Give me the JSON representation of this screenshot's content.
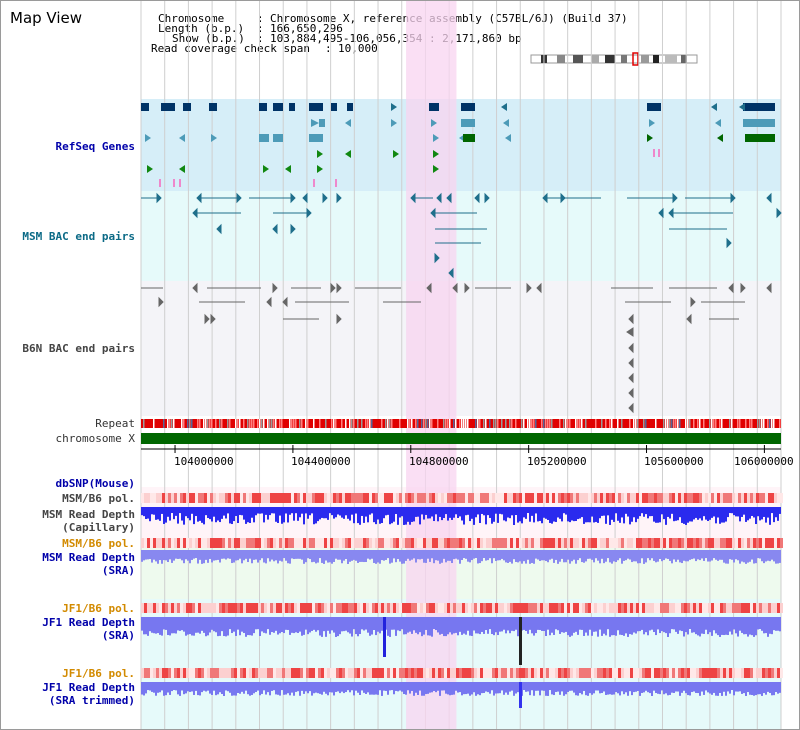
{
  "view": {
    "title": "Map View",
    "chromosome_key": "Chromosome",
    "chromosome_value": "Chromosome X, reference assembly (C57BL/6J) (Build 37)",
    "length_key": "Length (b.p.)",
    "length_value": "166,650,296",
    "show_key": "Show (b.p.)",
    "show_value": "103,884,495-106,056,354 : 2,171,860 bp",
    "coverage_key": "Read coverage check span",
    "coverage_value": "10,000"
  },
  "tracks": {
    "refseq": "RefSeq Genes",
    "msm_bac": "MSM BAC end pairs",
    "b6n_bac": "B6N BAC end pairs",
    "repeat": "Repeat",
    "chromosome": "chromosome X",
    "dbsnp": "dbSNP(Mouse)",
    "msm_pol_1": "MSM/B6 pol.",
    "msm_depth_cap_1": "MSM Read Depth",
    "msm_depth_cap_2": "(Capillary)",
    "msm_pol_2": "MSM/B6 pol.",
    "msm_depth_sra_1": "MSM Read Depth",
    "msm_depth_sra_2": "(SRA)",
    "jf1_pol_1": "JF1/B6 pol.",
    "jf1_depth_1": "JF1 Read Depth",
    "jf1_depth_2": "(SRA)",
    "jf1_pol_2": "JF1/B6 pol.",
    "jf1_trim_1": "JF1 Read Depth",
    "jf1_trim_2": "(SRA trimmed)"
  },
  "axis": {
    "ticks": [
      "104000000",
      "104400000",
      "104800000",
      "105200000",
      "105600000",
      "106000000"
    ],
    "tick_values": [
      104000000,
      104400000,
      104800000,
      105200000,
      105600000,
      106000000
    ],
    "range": [
      103884495,
      106056354
    ]
  },
  "highlight": {
    "range": [
      104784000,
      104955000
    ]
  },
  "colors": {
    "refseq_bg": "#d6eef8",
    "bac_bg": "#e6fafa",
    "msm_bac": "#1f6f8b",
    "b6n_bac": "#666666",
    "gene_dark": "#003366",
    "gene_teal": "#4d9bb8",
    "gene_green": "#006600",
    "highlight": "#f8d4f0",
    "chrom_bar": "#006600",
    "depth": "#3333ee",
    "depth_light": "#8888f0",
    "pol": "#f08080",
    "dbsnp_bg": "#fff0f5",
    "sra_bg": "#eefaee",
    "jf_bg": "#e6fafa"
  },
  "icons": {
    "ideogram": "chromosome-ideogram-icon"
  }
}
